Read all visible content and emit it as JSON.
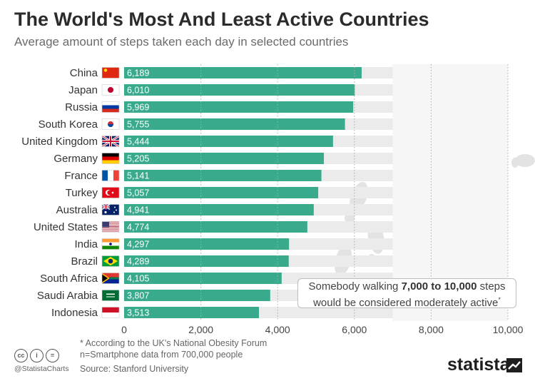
{
  "chart_data": {
    "type": "bar",
    "orientation": "horizontal",
    "title": "The World's Most And Least Active Countries",
    "subtitle": "Average amount of steps taken each day in selected countries",
    "categories": [
      "China",
      "Japan",
      "Russia",
      "South Korea",
      "United Kingdom",
      "Germany",
      "France",
      "Turkey",
      "Australia",
      "United States",
      "India",
      "Brazil",
      "South Africa",
      "Saudi Arabia",
      "Indonesia"
    ],
    "values": [
      6189,
      6010,
      5969,
      5755,
      5444,
      5205,
      5141,
      5057,
      4941,
      4774,
      4297,
      4289,
      4105,
      3807,
      3513
    ],
    "value_labels": [
      "6,189",
      "6,010",
      "5,969",
      "5,755",
      "5,444",
      "5,205",
      "5,141",
      "5,057",
      "4,941",
      "4,774",
      "4,297",
      "4,289",
      "4,105",
      "3,807",
      "3,513"
    ],
    "xticks": [
      0,
      2000,
      4000,
      6000,
      8000,
      10000
    ],
    "xtick_labels": [
      "0",
      "2,000",
      "4,000",
      "6,000",
      "8,000",
      "10,000"
    ],
    "xlim": [
      0,
      10000
    ],
    "highlight_range": [
      7000,
      10000
    ],
    "colors": {
      "bar": "#3aaa8d",
      "track": "#ebebeb",
      "highlight": "#f6f6f6"
    }
  },
  "callout": {
    "line1_pre": "Somebody walking ",
    "line1_bold": "7,000 to 10,000",
    "line1_post": " steps",
    "line2": "would be considered moderately active",
    "line2_sup": "*"
  },
  "footer": {
    "note1": "* According to the UK's National Obesity Forum",
    "note2": "n=Smartphone data from 700,000 people",
    "source": "Source: Stanford University",
    "handle": "@StatistaCharts",
    "brand": "statista",
    "license_icons": [
      "cc-icon",
      "by-icon",
      "nd-icon"
    ],
    "license_glyphs": [
      "cc",
      "i",
      "="
    ]
  }
}
